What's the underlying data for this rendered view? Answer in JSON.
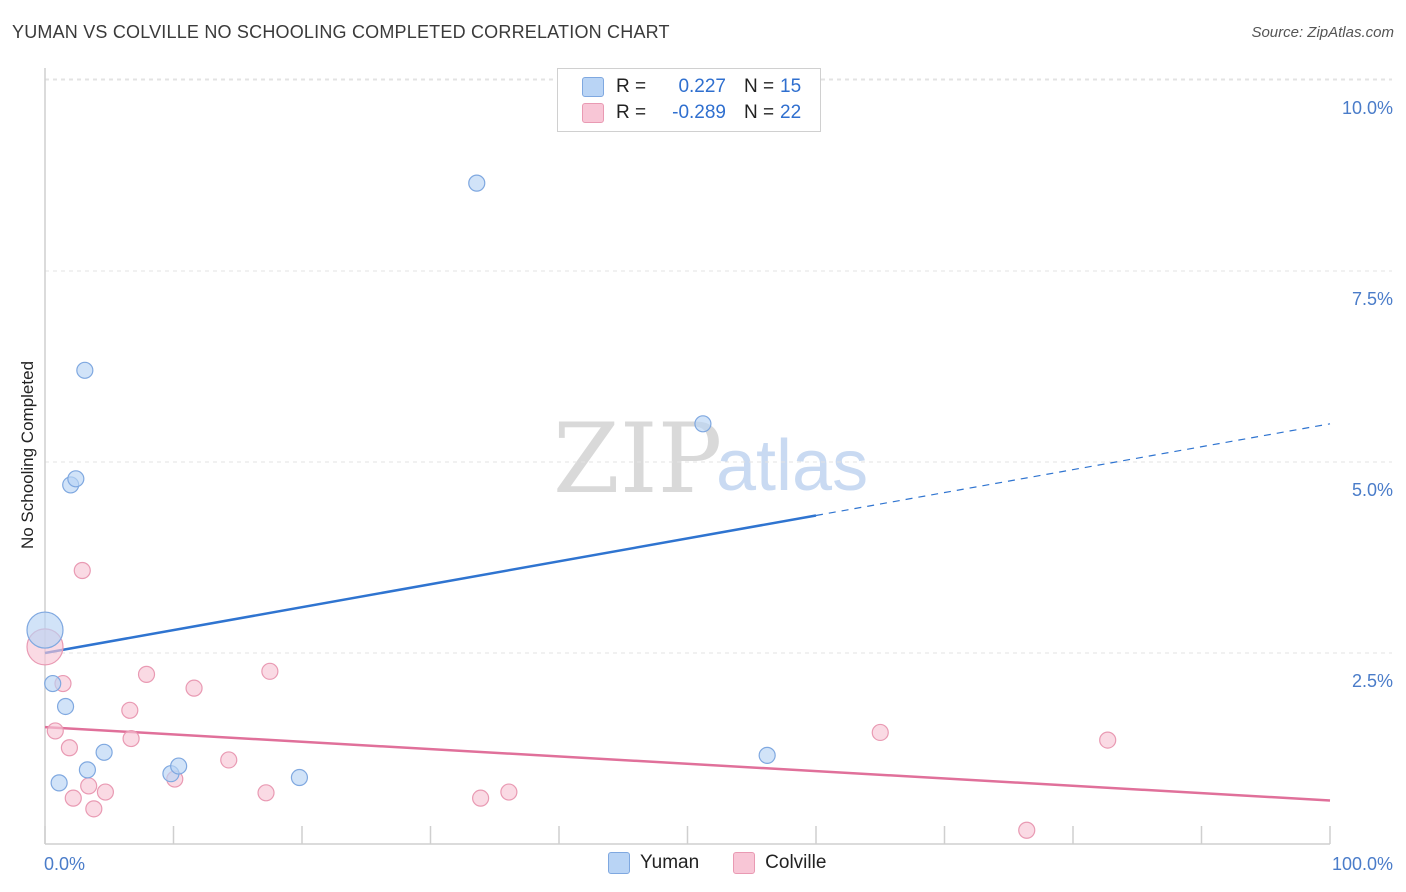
{
  "title": "YUMAN VS COLVILLE NO SCHOOLING COMPLETED CORRELATION CHART",
  "source": "Source: ZipAtlas.com",
  "watermark": {
    "zip": "ZIP",
    "atlas": "atlas"
  },
  "colors": {
    "yuman_fill": "#b9d4f5",
    "yuman_stroke": "#7fa8e0",
    "yuman_line": "#2f74d0",
    "colville_fill": "#f8c6d6",
    "colville_stroke": "#e99ab3",
    "colville_line": "#e0709a",
    "grid": "#e3e3e3",
    "tick_label": "#4a7cc9"
  },
  "legend": {
    "rows": [
      {
        "r_label": "R =",
        "r_value": "0.227",
        "n_label": "N =",
        "n_value": "15"
      },
      {
        "r_label": "R =",
        "r_value": "-0.289",
        "n_label": "N =",
        "n_value": "22"
      }
    ]
  },
  "chart_data": {
    "type": "scatter",
    "title": "YUMAN VS COLVILLE NO SCHOOLING COMPLETED CORRELATION CHART",
    "xlabel": "",
    "ylabel": "No Schooling Completed",
    "xlim": [
      0,
      100
    ],
    "ylim": [
      0,
      10.5
    ],
    "x_tick_labels": [
      "0.0%",
      "100.0%"
    ],
    "y_ticks": [
      2.5,
      5.0,
      7.5,
      10.0
    ],
    "y_tick_labels": [
      "2.5%",
      "5.0%",
      "7.5%",
      "10.0%"
    ],
    "grid": true,
    "legend_position": "bottom",
    "series": [
      {
        "name": "Yuman",
        "points": [
          {
            "x": 0.0,
            "y": 2.8,
            "big": true
          },
          {
            "x": 0.6,
            "y": 2.1
          },
          {
            "x": 1.1,
            "y": 0.8
          },
          {
            "x": 1.6,
            "y": 1.8
          },
          {
            "x": 2.0,
            "y": 4.7
          },
          {
            "x": 2.4,
            "y": 4.78
          },
          {
            "x": 3.1,
            "y": 6.2
          },
          {
            "x": 3.3,
            "y": 0.97
          },
          {
            "x": 4.6,
            "y": 1.2
          },
          {
            "x": 9.8,
            "y": 0.92
          },
          {
            "x": 10.4,
            "y": 1.02
          },
          {
            "x": 19.8,
            "y": 0.87
          },
          {
            "x": 33.6,
            "y": 8.65
          },
          {
            "x": 51.2,
            "y": 5.5
          },
          {
            "x": 56.2,
            "y": 1.16
          }
        ],
        "trend": {
          "x0": 0,
          "y0": 2.5,
          "x1": 60,
          "y1": 4.3,
          "dash_x1": 100,
          "dash_y1": 5.5
        }
      },
      {
        "name": "Colville",
        "points": [
          {
            "x": 0.0,
            "y": 2.58,
            "big": true
          },
          {
            "x": 0.8,
            "y": 1.48
          },
          {
            "x": 1.4,
            "y": 2.1
          },
          {
            "x": 1.9,
            "y": 1.26
          },
          {
            "x": 2.2,
            "y": 0.6
          },
          {
            "x": 2.9,
            "y": 3.58
          },
          {
            "x": 3.4,
            "y": 0.76
          },
          {
            "x": 3.8,
            "y": 0.46
          },
          {
            "x": 4.7,
            "y": 0.68
          },
          {
            "x": 6.6,
            "y": 1.75
          },
          {
            "x": 6.7,
            "y": 1.38
          },
          {
            "x": 7.9,
            "y": 2.22
          },
          {
            "x": 10.1,
            "y": 0.85
          },
          {
            "x": 11.6,
            "y": 2.04
          },
          {
            "x": 14.3,
            "y": 1.1
          },
          {
            "x": 17.2,
            "y": 0.67
          },
          {
            "x": 17.5,
            "y": 2.26
          },
          {
            "x": 33.9,
            "y": 0.6
          },
          {
            "x": 36.1,
            "y": 0.68
          },
          {
            "x": 65.0,
            "y": 1.46
          },
          {
            "x": 76.4,
            "y": 0.18
          },
          {
            "x": 82.7,
            "y": 1.36
          }
        ],
        "trend": {
          "x0": 0,
          "y0": 1.53,
          "x1": 100,
          "y1": 0.57
        }
      }
    ]
  }
}
